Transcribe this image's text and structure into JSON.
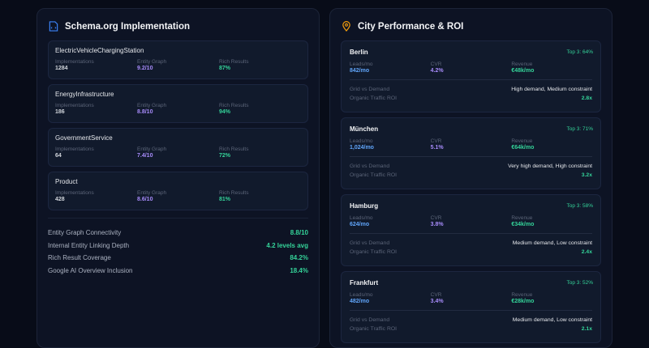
{
  "schema": {
    "title": "Schema.org Implementation",
    "labels": {
      "implementations": "Implementations",
      "entity_graph": "Entity Graph",
      "rich_results": "Rich Results"
    },
    "items": [
      {
        "name": "ElectricVehicleChargingStation",
        "implementations": "1284",
        "entity_graph": "9.2/10",
        "rich_results": "87%"
      },
      {
        "name": "EnergyInfrastructure",
        "implementations": "186",
        "entity_graph": "8.8/10",
        "rich_results": "94%"
      },
      {
        "name": "GovernmentService",
        "implementations": "64",
        "entity_graph": "7.4/10",
        "rich_results": "72%"
      },
      {
        "name": "Product",
        "implementations": "428",
        "entity_graph": "8.6/10",
        "rich_results": "81%"
      }
    ],
    "metrics": [
      {
        "label": "Entity Graph Connectivity",
        "value": "8.8/10"
      },
      {
        "label": "Internal Entity Linking Depth",
        "value": "4.2 levels avg"
      },
      {
        "label": "Rich Result Coverage",
        "value": "84.2%"
      },
      {
        "label": "Google AI Overview Inclusion",
        "value": "18.4%"
      }
    ]
  },
  "cities": {
    "title": "City Performance & ROI",
    "labels": {
      "leads": "Leads/mo",
      "cvr": "CVR",
      "revenue": "Revenue",
      "grid": "Grid vs Demand",
      "roi": "Organic Traffic ROI"
    },
    "items": [
      {
        "name": "Berlin",
        "top3": "Top 3: 64%",
        "leads": "842/mo",
        "cvr": "4.2%",
        "revenue": "€48k/mo",
        "grid": "High demand, Medium constraint",
        "roi": "2.8x"
      },
      {
        "name": "München",
        "top3": "Top 3: 71%",
        "leads": "1,024/mo",
        "cvr": "5.1%",
        "revenue": "€64k/mo",
        "grid": "Very high demand, High constraint",
        "roi": "3.2x"
      },
      {
        "name": "Hamburg",
        "top3": "Top 3: 58%",
        "leads": "624/mo",
        "cvr": "3.8%",
        "revenue": "€34k/mo",
        "grid": "Medium demand, Low constraint",
        "roi": "2.4x"
      },
      {
        "name": "Frankfurt",
        "top3": "Top 3: 52%",
        "leads": "482/mo",
        "cvr": "3.4%",
        "revenue": "€28k/mo",
        "grid": "Medium demand, Low constraint",
        "roi": "2.1x"
      }
    ]
  }
}
